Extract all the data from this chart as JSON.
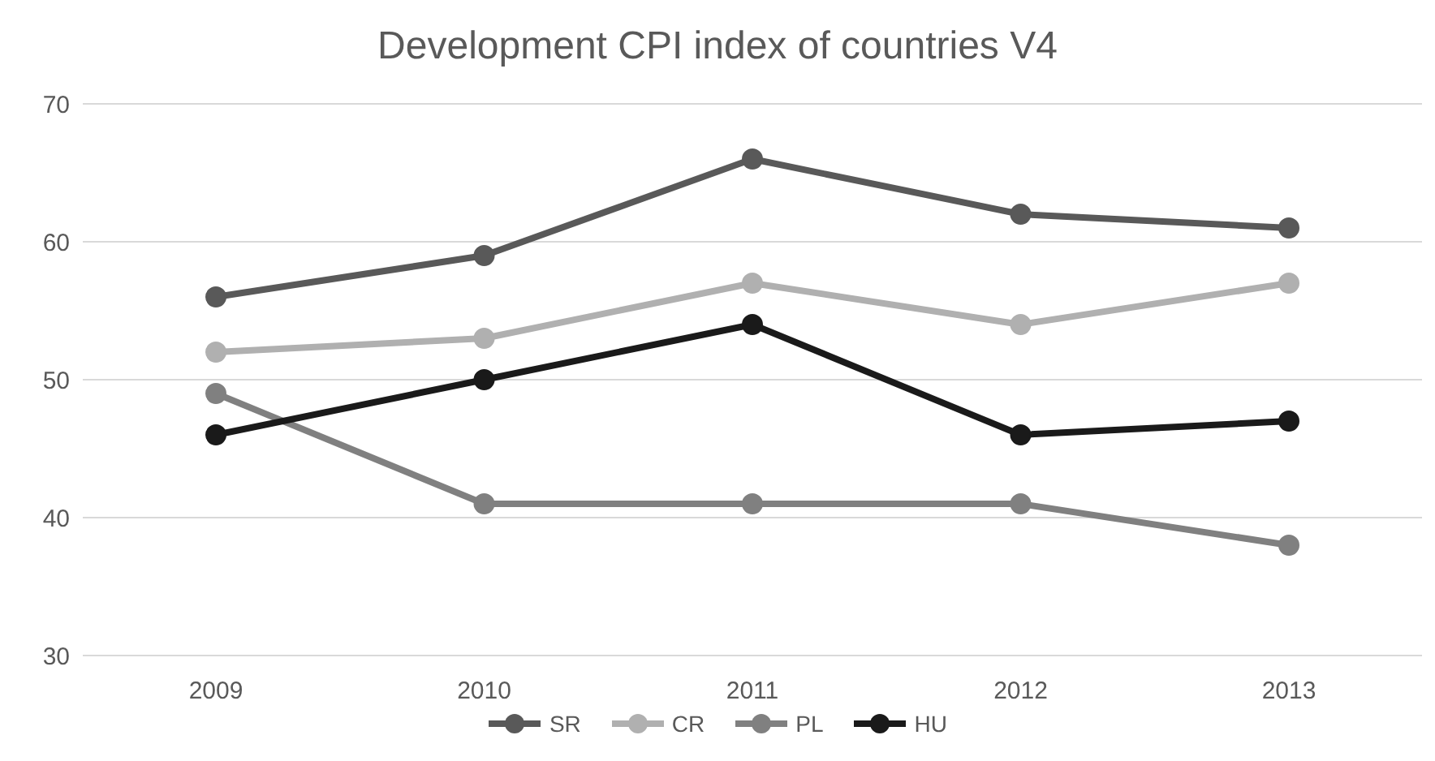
{
  "chart_data": {
    "type": "line",
    "title": "Development CPI index of countries V4",
    "categories": [
      "2009",
      "2010",
      "2011",
      "2012",
      "2013"
    ],
    "series": [
      {
        "name": "SR",
        "color": "#595959",
        "values": [
          56,
          59,
          66,
          62,
          61
        ]
      },
      {
        "name": "CR",
        "color": "#b0b0b0",
        "values": [
          52,
          53,
          57,
          54,
          57
        ]
      },
      {
        "name": "PL",
        "color": "#808080",
        "values": [
          49,
          41,
          41,
          41,
          38
        ]
      },
      {
        "name": "HU",
        "color": "#1a1a1a",
        "values": [
          46,
          50,
          54,
          46,
          47
        ]
      }
    ],
    "ylim": [
      30,
      70
    ],
    "yticks": [
      30,
      40,
      50,
      60,
      70
    ],
    "grid": "y",
    "legend": "bottom",
    "marker": "circle",
    "line_style": "solid"
  }
}
